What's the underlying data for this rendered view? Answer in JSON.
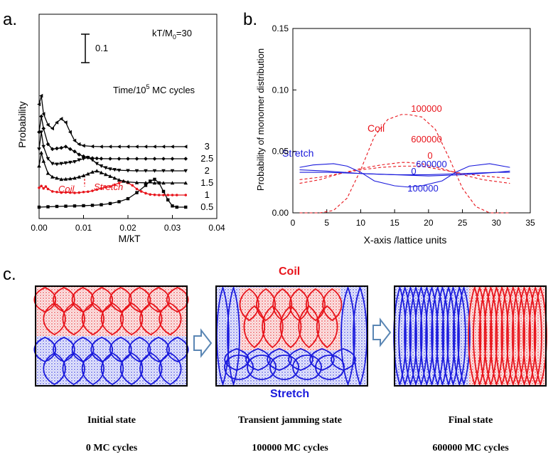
{
  "panels": {
    "a": "a.",
    "b": "b.",
    "c": "c."
  },
  "colors": {
    "coil": "#e8141b",
    "stretch": "#1a1adc",
    "black": "#000000",
    "arrow": "#5a86b4"
  },
  "chart_data": [
    {
      "type": "line",
      "title": "",
      "xlabel": "M/kT",
      "ylabel": "Probability",
      "xlim": [
        0.0,
        0.04
      ],
      "xticks": [
        "0.00",
        "0.01",
        "0.02",
        "0.03",
        "0.04"
      ],
      "annotation_param": "kT/M",
      "annotation_param_sub": "0",
      "annotation_param_value": "=30",
      "scale_bar_label": "0.1",
      "time_header": "Time/10",
      "time_header_exp": "5",
      "time_header_rest": " MC cycles",
      "region_labels": {
        "coil": "Coil",
        "stretch": "Stretch"
      },
      "series": [
        {
          "name": "0.5",
          "color": "black",
          "marker": "square",
          "baseline": 0.0,
          "x": [
            0.0,
            0.002,
            0.004,
            0.006,
            0.008,
            0.01,
            0.012,
            0.014,
            0.016,
            0.018,
            0.02,
            0.022,
            0.024,
            0.025,
            0.026,
            0.027,
            0.028,
            0.029,
            0.03,
            0.031,
            0.033
          ],
          "y": [
            0.0,
            0.003,
            0.006,
            0.008,
            0.01,
            0.012,
            0.015,
            0.02,
            0.03,
            0.045,
            0.07,
            0.12,
            0.18,
            0.215,
            0.23,
            0.2,
            0.13,
            0.06,
            0.01,
            0.0,
            0.0
          ]
        },
        {
          "name": "1",
          "color": "red",
          "marker": "dot",
          "baseline": 0.1,
          "x": [
            0.0,
            0.0005,
            0.001,
            0.0015,
            0.002,
            0.003,
            0.004,
            0.005,
            0.006,
            0.007,
            0.008,
            0.009,
            0.01,
            0.011,
            0.012,
            0.013,
            0.014,
            0.015,
            0.016,
            0.017,
            0.018,
            0.019,
            0.02,
            0.021,
            0.022,
            0.023,
            0.024,
            0.025,
            0.026,
            0.027,
            0.028,
            0.029,
            0.03,
            0.031,
            0.033
          ],
          "y": [
            0.06,
            0.075,
            0.055,
            0.07,
            0.05,
            0.03,
            0.025,
            0.02,
            0.022,
            0.02,
            0.018,
            0.02,
            0.025,
            0.028,
            0.035,
            0.045,
            0.055,
            0.065,
            0.07,
            0.085,
            0.1,
            0.115,
            0.1,
            0.08,
            0.05,
            0.03,
            0.015,
            0.005,
            0.002,
            0.0,
            0.0,
            0.0,
            0.0,
            0.0,
            0.0
          ]
        },
        {
          "name": "1.5",
          "color": "black",
          "marker": "tri-up",
          "baseline": 0.2,
          "x": [
            0.0,
            0.0005,
            0.001,
            0.002,
            0.003,
            0.004,
            0.005,
            0.006,
            0.007,
            0.008,
            0.009,
            0.01,
            0.011,
            0.012,
            0.013,
            0.014,
            0.015,
            0.016,
            0.017,
            0.018,
            0.019,
            0.02,
            0.022,
            0.024,
            0.026,
            0.028,
            0.03,
            0.033
          ],
          "y": [
            0.14,
            0.25,
            0.18,
            0.08,
            0.05,
            0.04,
            0.03,
            0.032,
            0.035,
            0.04,
            0.05,
            0.06,
            0.075,
            0.09,
            0.1,
            0.085,
            0.07,
            0.055,
            0.04,
            0.025,
            0.015,
            0.008,
            0.003,
            0.001,
            0.0,
            0.0,
            0.0,
            0.0
          ]
        },
        {
          "name": "2",
          "color": "black",
          "marker": "tri-down",
          "baseline": 0.3,
          "x": [
            0.0,
            0.0005,
            0.001,
            0.002,
            0.003,
            0.004,
            0.005,
            0.006,
            0.007,
            0.008,
            0.009,
            0.01,
            0.011,
            0.012,
            0.013,
            0.014,
            0.015,
            0.016,
            0.017,
            0.018,
            0.02,
            0.022,
            0.024,
            0.026,
            0.028,
            0.03,
            0.033
          ],
          "y": [
            0.18,
            0.32,
            0.2,
            0.1,
            0.06,
            0.055,
            0.06,
            0.065,
            0.07,
            0.075,
            0.09,
            0.1,
            0.11,
            0.09,
            0.06,
            0.04,
            0.025,
            0.015,
            0.01,
            0.005,
            0.002,
            0.0,
            0.0,
            0.0,
            0.0,
            0.0,
            0.0
          ]
        },
        {
          "name": "2.5",
          "color": "black",
          "marker": "diamond",
          "baseline": 0.4,
          "x": [
            0.0,
            0.0005,
            0.001,
            0.002,
            0.003,
            0.004,
            0.005,
            0.006,
            0.007,
            0.008,
            0.009,
            0.01,
            0.011,
            0.012,
            0.013,
            0.014,
            0.016,
            0.018,
            0.02,
            0.022,
            0.024,
            0.026,
            0.028,
            0.03,
            0.033
          ],
          "y": [
            0.22,
            0.35,
            0.25,
            0.12,
            0.08,
            0.085,
            0.09,
            0.1,
            0.08,
            0.06,
            0.035,
            0.02,
            0.01,
            0.005,
            0.003,
            0.001,
            0.0,
            0.0,
            0.0,
            0.0,
            0.0,
            0.0,
            0.0,
            0.0,
            0.0
          ]
        },
        {
          "name": "3",
          "color": "black",
          "marker": "tri-left",
          "baseline": 0.5,
          "x": [
            0.0,
            0.0005,
            0.001,
            0.002,
            0.003,
            0.004,
            0.005,
            0.006,
            0.007,
            0.008,
            0.009,
            0.01,
            0.012,
            0.014,
            0.016,
            0.018,
            0.02,
            0.022,
            0.024,
            0.026,
            0.028,
            0.03,
            0.033
          ],
          "y": [
            0.35,
            0.42,
            0.27,
            0.18,
            0.15,
            0.2,
            0.23,
            0.2,
            0.12,
            0.05,
            0.02,
            0.008,
            0.002,
            0.0,
            0.0,
            0.0,
            0.0,
            0.0,
            0.0,
            0.0,
            0.0,
            0.0,
            0.0
          ]
        }
      ]
    },
    {
      "type": "line",
      "title": "",
      "xlabel": "X-axis /lattice units",
      "ylabel": "Probability of monomer distribution",
      "xlim": [
        0,
        35
      ],
      "ylim": [
        0.0,
        0.15
      ],
      "xticks": [
        "0",
        "5",
        "10",
        "15",
        "20",
        "25",
        "30",
        "35"
      ],
      "yticks": [
        "0.00",
        "0.05",
        "0.10",
        "0.15"
      ],
      "group_labels": {
        "coil": "Coil",
        "stretch": "Stretch"
      },
      "series": [
        {
          "name": "0",
          "group": "coil",
          "dashed": true,
          "x": [
            1,
            4,
            7,
            10,
            13,
            16,
            17,
            19,
            22,
            25,
            28,
            32
          ],
          "y": [
            0.024,
            0.027,
            0.032,
            0.036,
            0.039,
            0.041,
            0.041,
            0.04,
            0.036,
            0.031,
            0.027,
            0.024
          ]
        },
        {
          "name": "100000",
          "group": "coil",
          "dashed": true,
          "x": [
            1,
            4,
            6,
            8,
            10,
            12,
            14,
            16,
            17,
            19,
            21,
            23,
            25,
            27,
            29,
            32
          ],
          "y": [
            0.0,
            0.0,
            0.002,
            0.012,
            0.035,
            0.062,
            0.076,
            0.08,
            0.08,
            0.078,
            0.068,
            0.045,
            0.02,
            0.005,
            0.0,
            0.0
          ]
        },
        {
          "name": "600000",
          "group": "coil",
          "dashed": true,
          "x": [
            1,
            4,
            7,
            10,
            13,
            16,
            17,
            19,
            22,
            25,
            28,
            32
          ],
          "y": [
            0.027,
            0.029,
            0.032,
            0.035,
            0.037,
            0.038,
            0.038,
            0.038,
            0.035,
            0.032,
            0.03,
            0.028
          ]
        },
        {
          "name": "0",
          "group": "stretch",
          "dashed": false,
          "x": [
            1,
            5,
            10,
            15,
            20,
            25,
            30,
            32
          ],
          "y": [
            0.033,
            0.033,
            0.032,
            0.031,
            0.031,
            0.032,
            0.033,
            0.033
          ]
        },
        {
          "name": "100000",
          "group": "stretch",
          "dashed": false,
          "x": [
            1,
            3,
            6,
            8,
            10,
            12,
            15,
            17,
            19,
            22,
            24,
            26,
            29,
            32
          ],
          "y": [
            0.037,
            0.039,
            0.04,
            0.038,
            0.033,
            0.026,
            0.022,
            0.021,
            0.022,
            0.026,
            0.033,
            0.038,
            0.04,
            0.037
          ]
        },
        {
          "name": "600000",
          "group": "stretch",
          "dashed": false,
          "x": [
            1,
            5,
            10,
            15,
            20,
            25,
            30,
            32
          ],
          "y": [
            0.035,
            0.034,
            0.032,
            0.031,
            0.03,
            0.031,
            0.033,
            0.034
          ]
        }
      ]
    }
  ],
  "diagram": {
    "coil_label": "Coil",
    "stretch_label": "Stretch",
    "states": [
      {
        "title": "Initial state",
        "cycles": "0 MC cycles"
      },
      {
        "title": "Transient jamming state",
        "cycles": "100000 MC cycles"
      },
      {
        "title": "Final state",
        "cycles": "600000 MC cycles"
      }
    ]
  }
}
